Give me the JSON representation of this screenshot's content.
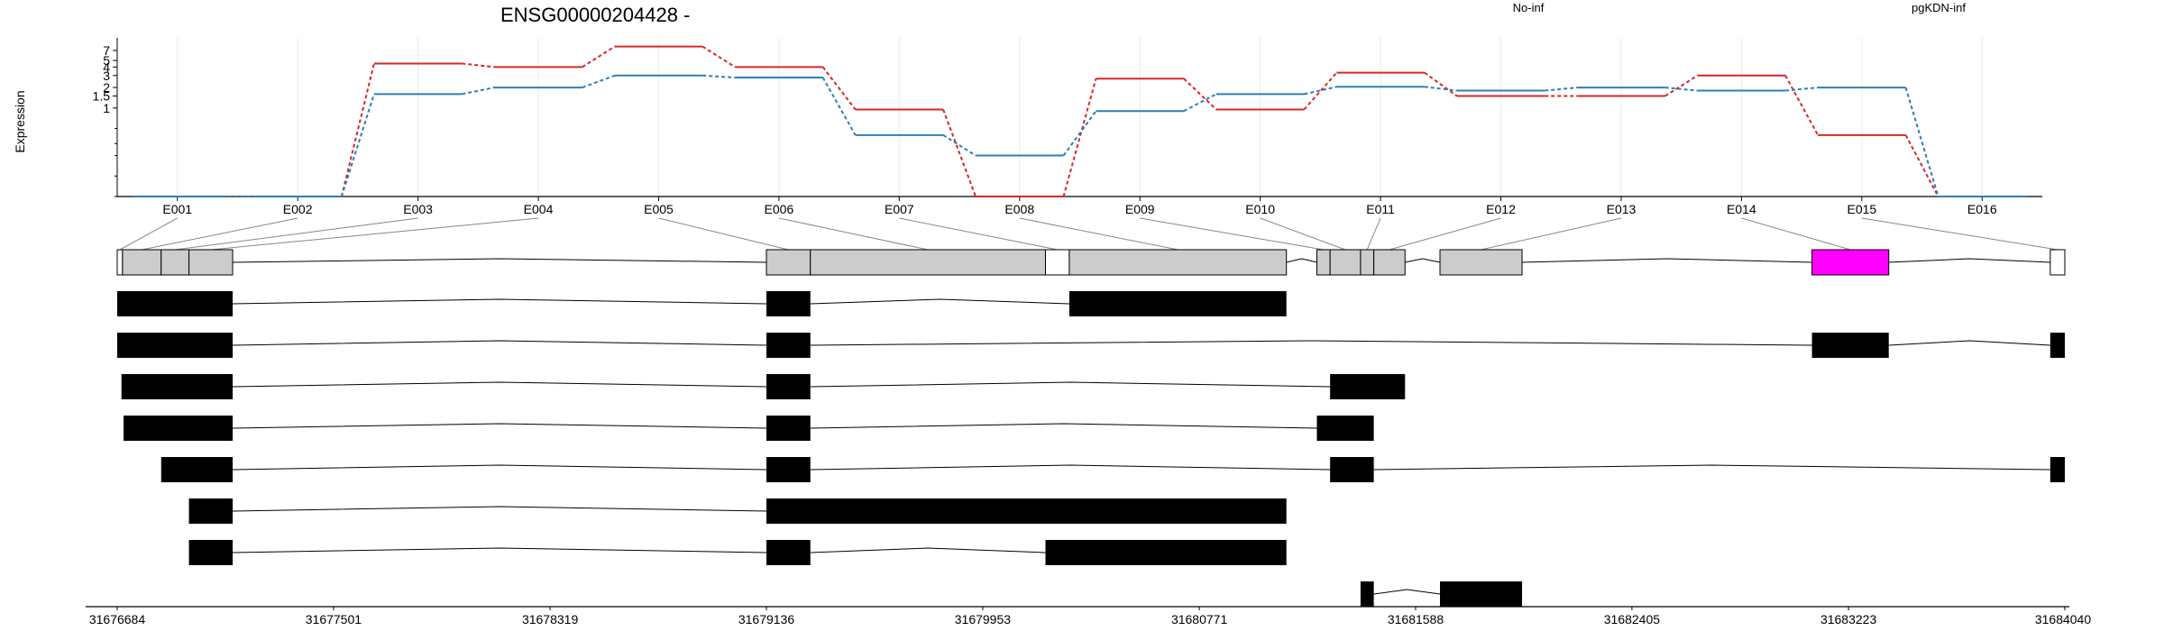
{
  "chart_data": {
    "type": "line",
    "title": "ENSG00000204428 -",
    "ylabel": "Expression",
    "y_scale": "log",
    "y_ticks": [
      "1",
      "1.5",
      "2",
      "3",
      "4",
      "5",
      "7"
    ],
    "categories": [
      "E001",
      "E002",
      "E003",
      "E004",
      "E005",
      "E006",
      "E007",
      "E008",
      "E009",
      "E010",
      "E011",
      "E012",
      "E013",
      "E014",
      "E015",
      "E016"
    ],
    "series": [
      {
        "name": "No-inf",
        "color": "#d62728",
        "values": [
          0.05,
          0.05,
          4.5,
          4.0,
          8.0,
          4.0,
          0.95,
          0.05,
          2.7,
          0.95,
          3.3,
          1.5,
          1.5,
          3.0,
          0.4,
          0.05
        ]
      },
      {
        "name": "pgKDN-inf",
        "color": "#2c7fb8",
        "values": [
          0.05,
          0.05,
          1.6,
          2.0,
          3.0,
          2.8,
          0.4,
          0.2,
          0.9,
          1.6,
          2.05,
          1.8,
          2.0,
          1.8,
          2.0,
          0.05
        ]
      }
    ],
    "grid": "vertical",
    "legend_placement": "top-right",
    "gene_model": {
      "genomic_ticks": [
        "31676684",
        "31677501",
        "31678319",
        "31679136",
        "31679953",
        "31680771",
        "31681588",
        "31682405",
        "31683223",
        "31684040"
      ],
      "exons": [
        {
          "id": "E001",
          "start": 31676684,
          "end": 31676704,
          "fill": "#ffffff"
        },
        {
          "id": "E002",
          "start": 31676704,
          "end": 31676850,
          "fill": "#cccccc"
        },
        {
          "id": "E003",
          "start": 31676850,
          "end": 31676955,
          "fill": "#cccccc"
        },
        {
          "id": "E004",
          "start": 31676955,
          "end": 31677120,
          "fill": "#cccccc"
        },
        {
          "id": "E005",
          "start": 31679136,
          "end": 31679302,
          "fill": "#cccccc"
        },
        {
          "id": "E006",
          "start": 31679302,
          "end": 31680190,
          "fill": "#cccccc"
        },
        {
          "id": "E007",
          "start": 31680190,
          "end": 31680280,
          "fill": "#ffffff"
        },
        {
          "id": "E008",
          "start": 31680280,
          "end": 31681100,
          "fill": "#cccccc"
        },
        {
          "id": "E009",
          "start": 31681215,
          "end": 31681265,
          "fill": "#cccccc"
        },
        {
          "id": "E010",
          "start": 31681265,
          "end": 31681380,
          "fill": "#cccccc"
        },
        {
          "id": "E011",
          "start": 31681380,
          "end": 31681430,
          "fill": "#cccccc"
        },
        {
          "id": "E012",
          "start": 31681430,
          "end": 31681548,
          "fill": "#cccccc"
        },
        {
          "id": "E013",
          "start": 31681680,
          "end": 31681990,
          "fill": "#cccccc"
        },
        {
          "id": "E014",
          "start": 31683085,
          "end": 31683375,
          "fill": "#ff00ff"
        },
        {
          "id": "E015",
          "start": 31683985,
          "end": 31684040,
          "fill": "#ffffff"
        }
      ],
      "transcripts": [
        [
          [
            31676684,
            31677120
          ],
          [
            31679136,
            31679302
          ],
          [
            31680280,
            31681100
          ]
        ],
        [
          [
            31676684,
            31677120
          ],
          [
            31679136,
            31679302
          ],
          [
            31683085,
            31683375
          ],
          [
            31683985,
            31684040
          ]
        ],
        [
          [
            31676700,
            31677120
          ],
          [
            31679136,
            31679302
          ],
          [
            31681265,
            31681548
          ]
        ],
        [
          [
            31676708,
            31677120
          ],
          [
            31679136,
            31679302
          ],
          [
            31681215,
            31681430
          ]
        ],
        [
          [
            31676850,
            31677120
          ],
          [
            31679136,
            31679302
          ],
          [
            31681265,
            31681430
          ],
          [
            31683985,
            31684040
          ]
        ],
        [
          [
            31676955,
            31677120
          ],
          [
            31679136,
            31681100
          ]
        ],
        [
          [
            31676955,
            31677120
          ],
          [
            31679136,
            31679302
          ],
          [
            31680190,
            31681100
          ]
        ],
        [
          [
            31681380,
            31681430
          ],
          [
            31681680,
            31681990
          ]
        ]
      ]
    }
  }
}
